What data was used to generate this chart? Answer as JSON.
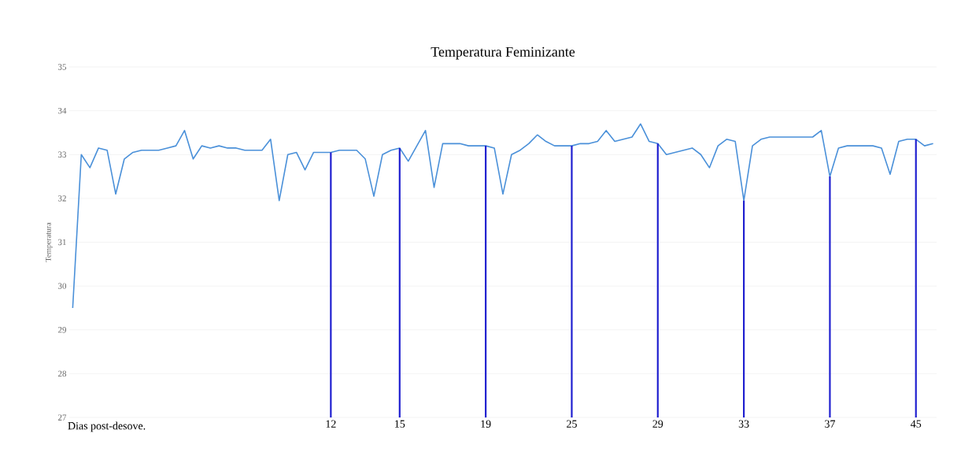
{
  "chart_data": {
    "type": "line",
    "title": "Temperatura Feminizante",
    "xlabel": "Dias post-desove.",
    "ylabel": "Temperatura",
    "categories": [
      null,
      null,
      null,
      null,
      null,
      null,
      null,
      null,
      null,
      null,
      null,
      null,
      null,
      null,
      null,
      null,
      null,
      null,
      null,
      null,
      null,
      null,
      null,
      null,
      null,
      null,
      null,
      null,
      null,
      null,
      "12",
      null,
      null,
      null,
      null,
      null,
      null,
      null,
      "15",
      null,
      null,
      null,
      null,
      null,
      null,
      null,
      null,
      null,
      "19",
      null,
      null,
      null,
      null,
      null,
      null,
      null,
      null,
      null,
      "25",
      null,
      null,
      null,
      null,
      null,
      null,
      null,
      null,
      null,
      "29",
      null,
      null,
      null,
      null,
      null,
      null,
      null,
      null,
      null,
      "33",
      null,
      null,
      null,
      null,
      null,
      null,
      null,
      null,
      null,
      "37",
      null,
      null,
      null,
      null,
      null,
      null,
      null,
      null,
      null,
      "45",
      null,
      null
    ],
    "series": [
      {
        "color": "#4a90d9",
        "values": [
          29.5,
          33.0,
          32.7,
          33.15,
          33.1,
          32.1,
          32.9,
          33.05,
          33.1,
          33.1,
          33.1,
          33.15,
          33.2,
          33.55,
          32.9,
          33.2,
          33.15,
          33.2,
          33.15,
          33.15,
          33.1,
          33.1,
          33.1,
          33.35,
          31.95,
          33.0,
          33.05,
          32.65,
          33.05,
          33.05,
          33.05,
          33.1,
          33.1,
          33.1,
          32.9,
          32.05,
          33.0,
          33.1,
          33.15,
          32.85,
          33.2,
          33.55,
          32.25,
          33.25,
          33.25,
          33.25,
          33.2,
          33.2,
          33.2,
          33.15,
          32.1,
          33.0,
          33.1,
          33.25,
          33.45,
          33.3,
          33.2,
          33.2,
          33.2,
          33.25,
          33.25,
          33.3,
          33.55,
          33.3,
          33.35,
          33.4,
          33.7,
          33.3,
          33.25,
          33.0,
          33.05,
          33.1,
          33.15,
          33.0,
          32.7,
          33.2,
          33.35,
          33.3,
          31.95,
          33.2,
          33.35,
          33.4,
          33.4,
          33.4,
          33.4,
          33.4,
          33.4,
          33.55,
          32.5,
          33.15,
          33.2,
          33.2,
          33.2,
          33.2,
          33.15,
          32.55,
          33.3,
          33.35,
          33.35,
          33.2,
          33.25
        ]
      }
    ],
    "ylim": [
      27,
      35
    ],
    "yticks": [
      27,
      28,
      29,
      30,
      31,
      32,
      33,
      34,
      35
    ],
    "ref_lines": [
      {
        "axis": "x",
        "value": "12",
        "color": "#2020d0"
      },
      {
        "axis": "x",
        "value": "15",
        "color": "#2020d0"
      },
      {
        "axis": "x",
        "value": "19",
        "color": "#2020d0"
      },
      {
        "axis": "x",
        "value": "25",
        "color": "#2020d0"
      },
      {
        "axis": "x",
        "value": "29",
        "color": "#2020d0"
      },
      {
        "axis": "x",
        "value": "33",
        "color": "#2020d0"
      },
      {
        "axis": "x",
        "value": "37",
        "color": "#2020d0"
      },
      {
        "axis": "x",
        "value": "45",
        "color": "#2020d0"
      }
    ],
    "grid": "y",
    "marker": "none",
    "line_style": "solid"
  }
}
